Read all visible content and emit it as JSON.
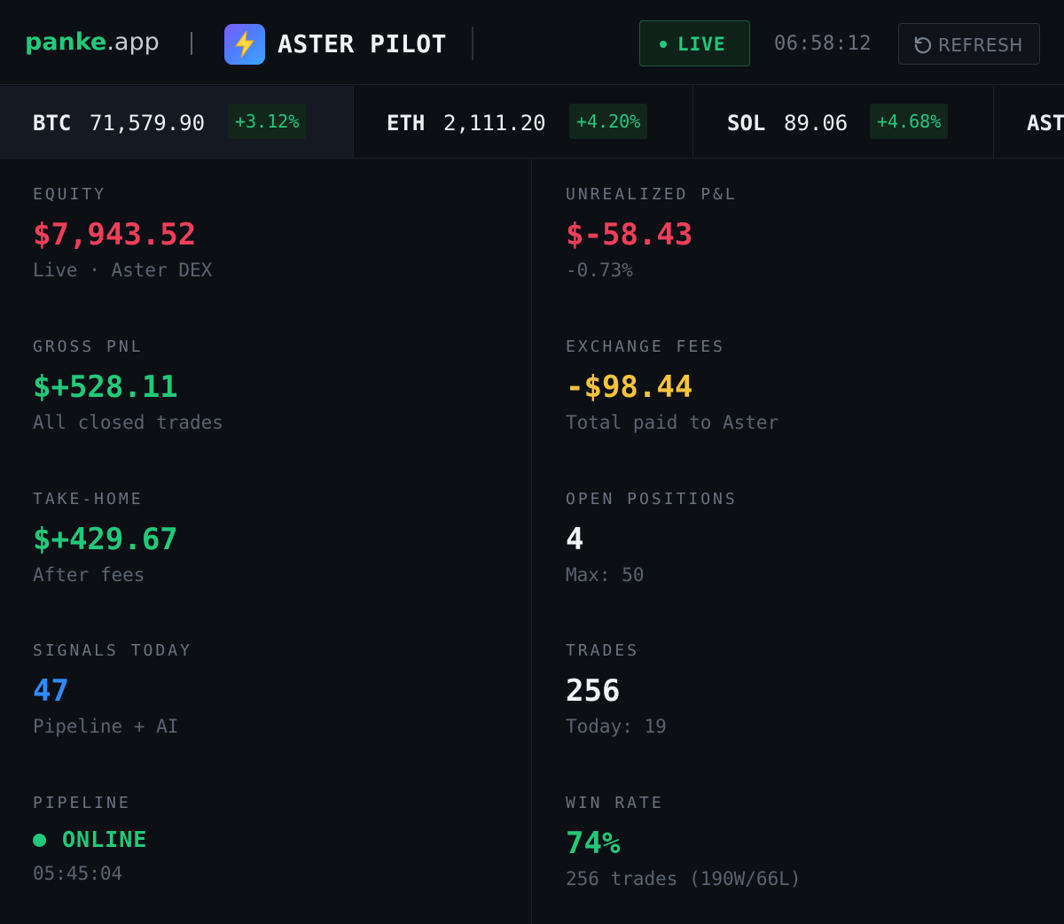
{
  "header": {
    "brand_primary": "panke",
    "brand_secondary": ".app",
    "app_title": "ASTER PILOT",
    "live_label": "LIVE",
    "clock": "06:58:12",
    "refresh_label": "REFRESH",
    "icons": {
      "logo": "lightning-icon",
      "refresh": "refresh-icon"
    },
    "colors": {
      "accent": "#22c97a",
      "logo_gradient_start": "#7b5cff",
      "logo_gradient_end": "#3aa6ff"
    }
  },
  "ticker": [
    {
      "symbol": "BTC",
      "price": "71,579.90",
      "change": "+3.12%",
      "active": true
    },
    {
      "symbol": "ETH",
      "price": "2,111.20",
      "change": "+4.20%",
      "active": false
    },
    {
      "symbol": "SOL",
      "price": "89.06",
      "change": "+4.68%",
      "active": false
    },
    {
      "symbol": "AST",
      "price": "",
      "change": "",
      "active": false
    }
  ],
  "stats": {
    "equity": {
      "label": "EQUITY",
      "value": "$7,943.52",
      "sub": "Live · Aster DEX",
      "color": "#ef3f5a"
    },
    "unrealized": {
      "label": "UNREALIZED P&L",
      "value": "$-58.43",
      "sub": "-0.73%",
      "color": "#ef3f5a"
    },
    "gross_pnl": {
      "label": "GROSS PNL",
      "value": "$+528.11",
      "sub": "All closed trades",
      "color": "#22c97a"
    },
    "exchange_fees": {
      "label": "EXCHANGE FEES",
      "value": "-$98.44",
      "sub": "Total paid to Aster",
      "color": "#f7c33a"
    },
    "take_home": {
      "label": "TAKE-HOME",
      "value": "$+429.67",
      "sub": "After fees",
      "color": "#22c97a"
    },
    "open_positions": {
      "label": "OPEN POSITIONS",
      "value": "4",
      "sub": "Max: 50",
      "color": "#f1f3f5"
    },
    "signals_today": {
      "label": "SIGNALS TODAY",
      "value": "47",
      "sub": "Pipeline + AI",
      "color": "#2f8cff"
    },
    "trades": {
      "label": "TRADES",
      "value": "256",
      "sub": "Today: 19",
      "color": "#f1f3f5"
    },
    "pipeline": {
      "label": "PIPELINE",
      "status": "ONLINE",
      "sub": "05:45:04",
      "color": "#22c97a"
    },
    "win_rate": {
      "label": "WIN RATE",
      "value": "74%",
      "sub": "256 trades (190W/66L)",
      "color": "#22c97a"
    }
  }
}
